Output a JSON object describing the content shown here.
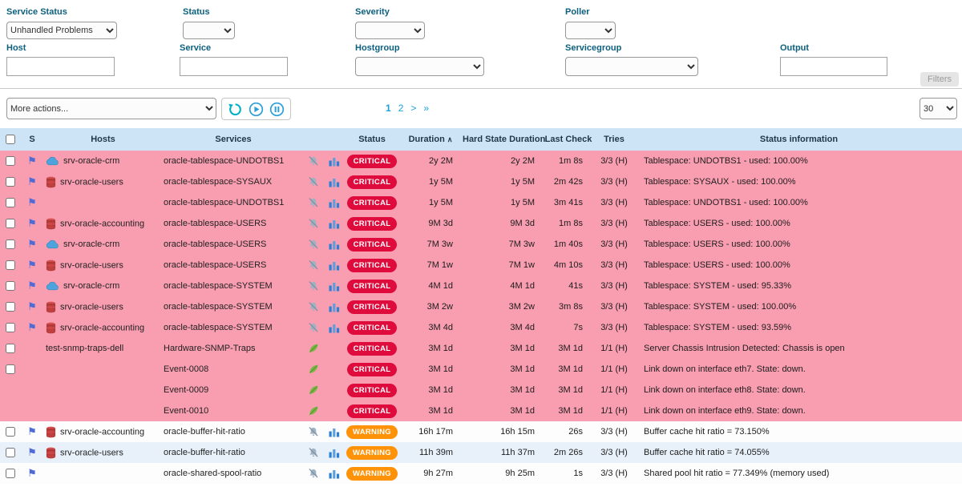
{
  "colors": {
    "critical": "#e00b3d",
    "warning": "#ff9207",
    "critical_row": "#f99db0",
    "warning_row_alt": "#e8f1fa",
    "header_bg": "#cde4f6",
    "label": "#0d607e",
    "link": "#19a0dd"
  },
  "filters": {
    "service_status_label": "Service Status",
    "service_status_value": "Unhandled Problems",
    "status_label": "Status",
    "severity_label": "Severity",
    "poller_label": "Poller",
    "host_label": "Host",
    "service_label": "Service",
    "hostgroup_label": "Hostgroup",
    "servicegroup_label": "Servicegroup",
    "output_label": "Output",
    "filters_tab": "Filters"
  },
  "toolbar": {
    "more_actions": "More actions...",
    "pagination": {
      "page1": "1",
      "page2": "2",
      "next": ">",
      "last": "»"
    },
    "page_size": "30"
  },
  "table": {
    "headers": {
      "s": "S",
      "hosts": "Hosts",
      "services": "Services",
      "status": "Status",
      "duration": "Duration",
      "hard_state_duration": "Hard State Duration",
      "last_check": "Last Check",
      "tries": "Tries",
      "info": "Status information"
    },
    "sort_icon": "∧",
    "rows": [
      {
        "checkbox": true,
        "flag": true,
        "host_icon": "cloud",
        "host": "srv-oracle-crm",
        "service": "oracle-tablespace-UNDOTBS1",
        "icons": [
          "mute",
          "chart"
        ],
        "status": "CRITICAL",
        "duration": "2y 2M",
        "hard_state_duration": "2y 2M",
        "last_check": "1m 8s",
        "tries": "3/3 (H)",
        "info": "Tablespace: UNDOTBS1 - used: 100.00%"
      },
      {
        "checkbox": true,
        "flag": true,
        "host_icon": "database",
        "host": "srv-oracle-users",
        "service": "oracle-tablespace-SYSAUX",
        "icons": [
          "mute",
          "chart"
        ],
        "status": "CRITICAL",
        "duration": "1y 5M",
        "hard_state_duration": "1y 5M",
        "last_check": "2m 42s",
        "tries": "3/3 (H)",
        "info": "Tablespace: SYSAUX - used: 100.00%"
      },
      {
        "checkbox": true,
        "flag": true,
        "host_icon": null,
        "host": "",
        "service": "oracle-tablespace-UNDOTBS1",
        "icons": [
          "mute",
          "chart"
        ],
        "status": "CRITICAL",
        "duration": "1y 5M",
        "hard_state_duration": "1y 5M",
        "last_check": "3m 41s",
        "tries": "3/3 (H)",
        "info": "Tablespace: UNDOTBS1 - used: 100.00%"
      },
      {
        "checkbox": true,
        "flag": true,
        "host_icon": "database",
        "host": "srv-oracle-accounting",
        "service": "oracle-tablespace-USERS",
        "icons": [
          "mute",
          "chart"
        ],
        "status": "CRITICAL",
        "duration": "9M 3d",
        "hard_state_duration": "9M 3d",
        "last_check": "1m 8s",
        "tries": "3/3 (H)",
        "info": "Tablespace: USERS - used: 100.00%"
      },
      {
        "checkbox": true,
        "flag": true,
        "host_icon": "cloud",
        "host": "srv-oracle-crm",
        "service": "oracle-tablespace-USERS",
        "icons": [
          "mute",
          "chart"
        ],
        "status": "CRITICAL",
        "duration": "7M 3w",
        "hard_state_duration": "7M 3w",
        "last_check": "1m 40s",
        "tries": "3/3 (H)",
        "info": "Tablespace: USERS - used: 100.00%"
      },
      {
        "checkbox": true,
        "flag": true,
        "host_icon": "database",
        "host": "srv-oracle-users",
        "service": "oracle-tablespace-USERS",
        "icons": [
          "mute",
          "chart"
        ],
        "status": "CRITICAL",
        "duration": "7M 1w",
        "hard_state_duration": "7M 1w",
        "last_check": "4m 10s",
        "tries": "3/3 (H)",
        "info": "Tablespace: USERS - used: 100.00%"
      },
      {
        "checkbox": true,
        "flag": true,
        "host_icon": "cloud",
        "host": "srv-oracle-crm",
        "service": "oracle-tablespace-SYSTEM",
        "icons": [
          "mute",
          "chart"
        ],
        "status": "CRITICAL",
        "duration": "4M 1d",
        "hard_state_duration": "4M 1d",
        "last_check": "41s",
        "tries": "3/3 (H)",
        "info": "Tablespace: SYSTEM - used: 95.33%"
      },
      {
        "checkbox": true,
        "flag": true,
        "host_icon": "database",
        "host": "srv-oracle-users",
        "service": "oracle-tablespace-SYSTEM",
        "icons": [
          "mute",
          "chart"
        ],
        "status": "CRITICAL",
        "duration": "3M 2w",
        "hard_state_duration": "3M 2w",
        "last_check": "3m 8s",
        "tries": "3/3 (H)",
        "info": "Tablespace: SYSTEM - used: 100.00%"
      },
      {
        "checkbox": true,
        "flag": true,
        "host_icon": "database",
        "host": "srv-oracle-accounting",
        "service": "oracle-tablespace-SYSTEM",
        "icons": [
          "mute",
          "chart"
        ],
        "status": "CRITICAL",
        "duration": "3M 4d",
        "hard_state_duration": "3M 4d",
        "last_check": "7s",
        "tries": "3/3 (H)",
        "info": "Tablespace: SYSTEM - used: 93.59%"
      },
      {
        "checkbox": true,
        "flag": false,
        "host_icon": null,
        "host": "test-snmp-traps-dell",
        "service": "Hardware-SNMP-Traps",
        "icons": [
          "feather"
        ],
        "status": "CRITICAL",
        "duration": "3M 1d",
        "hard_state_duration": "3M 1d",
        "last_check": "3M 1d",
        "tries": "1/1 (H)",
        "info": "Server Chassis Intrusion Detected: Chassis is open"
      },
      {
        "checkbox": true,
        "flag": false,
        "host_icon": null,
        "host": "",
        "service": "Event-0008",
        "icons": [
          "feather"
        ],
        "status": "CRITICAL",
        "duration": "3M 1d",
        "hard_state_duration": "3M 1d",
        "last_check": "3M 1d",
        "tries": "1/1 (H)",
        "info": "Link down on interface eth7. State: down."
      },
      {
        "checkbox": false,
        "flag": false,
        "host_icon": null,
        "host": "",
        "service": "Event-0009",
        "icons": [
          "feather"
        ],
        "status": "CRITICAL",
        "duration": "3M 1d",
        "hard_state_duration": "3M 1d",
        "last_check": "3M 1d",
        "tries": "1/1 (H)",
        "info": "Link down on interface eth8. State: down."
      },
      {
        "checkbox": false,
        "flag": false,
        "host_icon": null,
        "host": "",
        "service": "Event-0010",
        "icons": [
          "feather"
        ],
        "status": "CRITICAL",
        "duration": "3M 1d",
        "hard_state_duration": "3M 1d",
        "last_check": "3M 1d",
        "tries": "1/1 (H)",
        "info": "Link down on interface eth9. State: down."
      },
      {
        "checkbox": true,
        "flag": true,
        "host_icon": "database",
        "host": "srv-oracle-accounting",
        "service": "oracle-buffer-hit-ratio",
        "icons": [
          "mute",
          "chart"
        ],
        "status": "WARNING",
        "duration": "16h 17m",
        "hard_state_duration": "16h 15m",
        "last_check": "26s",
        "tries": "3/3 (H)",
        "info": "Buffer cache hit ratio = 73.150%"
      },
      {
        "checkbox": true,
        "flag": true,
        "host_icon": "database",
        "host": "srv-oracle-users",
        "service": "oracle-buffer-hit-ratio",
        "icons": [
          "mute",
          "chart"
        ],
        "status": "WARNING",
        "duration": "11h 39m",
        "hard_state_duration": "11h 37m",
        "last_check": "2m 26s",
        "tries": "3/3 (H)",
        "info": "Buffer cache hit ratio = 74.055%"
      },
      {
        "checkbox": true,
        "flag": true,
        "host_icon": null,
        "host": "",
        "service": "oracle-shared-spool-ratio",
        "icons": [
          "mute",
          "chart"
        ],
        "status": "WARNING",
        "duration": "9h 27m",
        "hard_state_duration": "9h 25m",
        "last_check": "1s",
        "tries": "3/3 (H)",
        "info": "Shared pool hit ratio = 77.349% (memory used)"
      }
    ]
  }
}
